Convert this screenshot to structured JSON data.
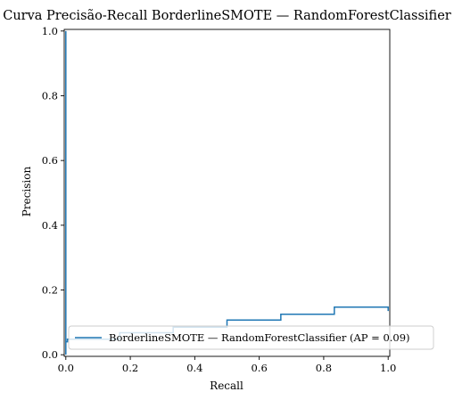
{
  "chart_data": {
    "type": "line",
    "title": "Curva Precisão-Recall BorderlineSMOTE — RandomForestClassifier",
    "xlabel": "Recall",
    "ylabel": "Precision",
    "xlim": [
      -0.005,
      1.005
    ],
    "ylim": [
      -0.005,
      1.005
    ],
    "xticks": [
      0.0,
      0.2,
      0.4,
      0.6,
      0.8,
      1.0
    ],
    "xtick_labels": [
      "0.0",
      "0.2",
      "0.4",
      "0.6",
      "0.8",
      "1.0"
    ],
    "yticks": [
      0.0,
      0.2,
      0.4,
      0.6,
      0.8,
      1.0
    ],
    "ytick_labels": [
      "0.0",
      "0.2",
      "0.4",
      "0.6",
      "0.8",
      "1.0"
    ],
    "grid": false,
    "legend_position": "lower-right",
    "series": [
      {
        "name": "BorderlineSMOTE — RandomForestClassifier (AP = 0.09)",
        "color": "#1f77b4",
        "drawstyle": "steps-post",
        "x": [
          0.0,
          0.0,
          0.0,
          0.0,
          0.005,
          0.005,
          0.167,
          0.167,
          0.333,
          0.333,
          0.5,
          0.5,
          0.667,
          0.667,
          0.833,
          0.833,
          1.0,
          1.0
        ],
        "y": [
          1.0,
          0.0,
          0.0,
          0.04,
          0.04,
          0.048,
          0.048,
          0.068,
          0.068,
          0.085,
          0.085,
          0.107,
          0.107,
          0.125,
          0.125,
          0.147,
          0.147,
          0.135
        ]
      }
    ]
  }
}
